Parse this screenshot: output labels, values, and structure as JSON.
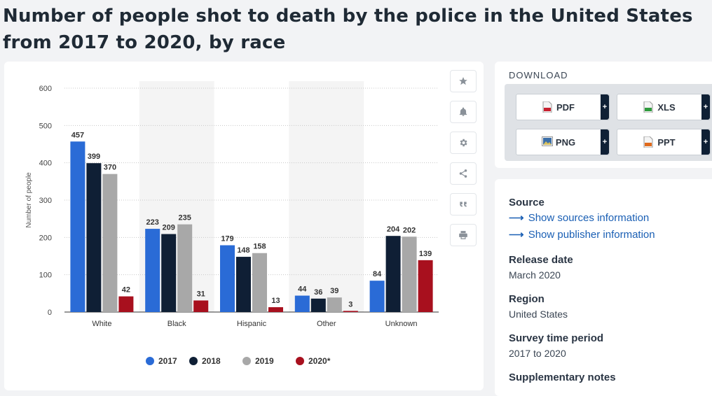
{
  "title": "Number of people shot to death by the police in the United States from 2017 to 2020, by race",
  "toolbar": {
    "icons": [
      "star-icon",
      "bell-icon",
      "gear-icon",
      "share-icon",
      "quote-icon",
      "print-icon"
    ]
  },
  "download": {
    "heading": "DOWNLOAD",
    "buttons": [
      {
        "label": "PDF",
        "color": "#c8202f"
      },
      {
        "label": "XLS",
        "color": "#2e9b3c"
      },
      {
        "label": "PNG",
        "color": "#3b6ea8"
      },
      {
        "label": "PPT",
        "color": "#e06a1c"
      }
    ],
    "plus": "+"
  },
  "info": {
    "source_heading": "Source",
    "show_sources": "Show sources information",
    "show_publisher": "Show publisher information",
    "release_heading": "Release date",
    "release_value": "March 2020",
    "region_heading": "Region",
    "region_value": "United States",
    "survey_heading": "Survey time period",
    "survey_value": "2017 to 2020",
    "supp_heading": "Supplementary notes"
  },
  "chart_data": {
    "type": "bar",
    "categories": [
      "White",
      "Black",
      "Hispanic",
      "Other",
      "Unknown"
    ],
    "series": [
      {
        "name": "2017",
        "color": "#2a6bd6",
        "values": [
          457,
          223,
          179,
          44,
          84
        ]
      },
      {
        "name": "2018",
        "color": "#0f1f35",
        "values": [
          399,
          209,
          148,
          36,
          204
        ]
      },
      {
        "name": "2019",
        "color": "#a8a8a8",
        "values": [
          370,
          235,
          158,
          39,
          202
        ]
      },
      {
        "name": "2020*",
        "color": "#a8101e",
        "values": [
          42,
          31,
          13,
          3,
          139
        ]
      }
    ],
    "ylabel": "Number of people",
    "xlabel": "",
    "ylim": [
      0,
      600
    ],
    "yticks": [
      0,
      100,
      200,
      300,
      400,
      500,
      600
    ],
    "grid": true,
    "legend": "bottom-center"
  }
}
